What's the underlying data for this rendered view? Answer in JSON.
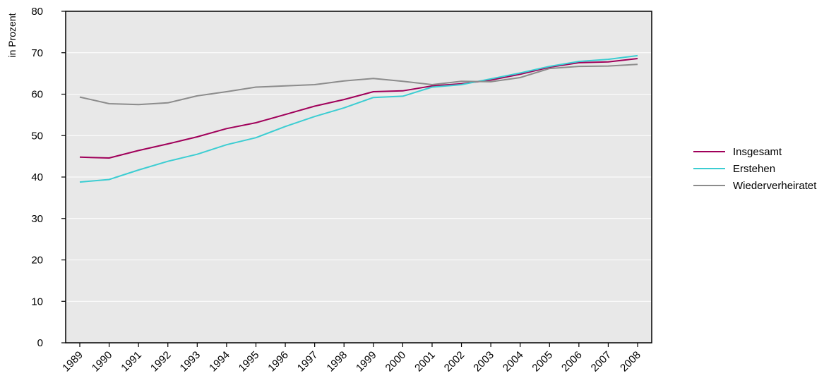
{
  "chart_data": {
    "type": "line",
    "ylabel": "in Prozent",
    "xlabel": "",
    "ylim": [
      0,
      80
    ],
    "yticks": [
      0,
      10,
      20,
      30,
      40,
      50,
      60,
      70,
      80
    ],
    "grid": true,
    "legend_position": "right",
    "categories": [
      "1989",
      "1990",
      "1991",
      "1992",
      "1993",
      "1994",
      "1995",
      "1996",
      "1997",
      "1998",
      "1999",
      "2000",
      "2001",
      "2002",
      "2003",
      "2004",
      "2005",
      "2006",
      "2007",
      "2008"
    ],
    "series": [
      {
        "name": "Insgesamt",
        "color": "#a0005a",
        "values": [
          44.8,
          44.6,
          46.4,
          48.0,
          49.7,
          51.7,
          53.1,
          55.1,
          57.1,
          58.7,
          60.6,
          60.8,
          62.0,
          62.5,
          63.4,
          64.8,
          66.5,
          67.6,
          67.8,
          68.6
        ]
      },
      {
        "name": "Erstehen",
        "color": "#3ccdd2",
        "values": [
          38.8,
          39.4,
          41.7,
          43.8,
          45.5,
          47.8,
          49.5,
          52.2,
          54.6,
          56.7,
          59.2,
          59.5,
          61.7,
          62.3,
          63.7,
          65.1,
          66.7,
          67.9,
          68.4,
          69.3
        ]
      },
      {
        "name": "Wiederverheiratet",
        "color": "#8c8c8c",
        "values": [
          59.3,
          57.7,
          57.5,
          57.9,
          59.6,
          60.6,
          61.7,
          62.0,
          62.3,
          63.2,
          63.8,
          63.1,
          62.3,
          63.1,
          63.0,
          64.0,
          66.2,
          66.7,
          66.8,
          67.2
        ]
      }
    ]
  },
  "colors": {
    "plot_background": "#e8e8e8",
    "gridline": "#ffffff",
    "axis": "#000000"
  }
}
